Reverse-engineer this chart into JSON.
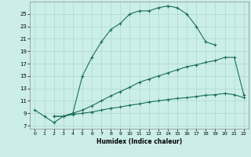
{
  "xlabel": "Humidex (Indice chaleur)",
  "background_color": "#cceee8",
  "grid_color": "#aad8d0",
  "line_color": "#1a6e60",
  "xlim": [
    -0.5,
    22.5
  ],
  "ylim": [
    6.5,
    27.0
  ],
  "xticks": [
    0,
    1,
    2,
    3,
    4,
    5,
    6,
    7,
    8,
    9,
    10,
    11,
    12,
    13,
    14,
    15,
    16,
    17,
    18,
    19,
    20,
    21,
    22
  ],
  "yticks": [
    7,
    9,
    11,
    13,
    15,
    17,
    19,
    21,
    23,
    25
  ],
  "curve1_x": [
    0,
    1,
    2,
    3,
    4,
    5,
    6,
    7,
    8,
    9,
    10,
    11,
    12,
    13,
    14,
    15,
    16,
    17,
    18,
    19
  ],
  "curve1_y": [
    9.5,
    8.5,
    7.5,
    8.5,
    9.0,
    15.0,
    18.0,
    20.5,
    22.5,
    23.5,
    25.0,
    25.5,
    25.5,
    26.0,
    26.3,
    26.0,
    25.0,
    23.0,
    20.5,
    20.0
  ],
  "curve2_x": [
    2,
    3,
    4,
    5,
    6,
    7,
    8,
    9,
    10,
    11,
    12,
    13,
    14,
    15,
    16,
    17,
    18,
    19,
    20,
    21,
    22
  ],
  "curve2_y": [
    8.5,
    8.5,
    9.0,
    9.5,
    10.2,
    11.0,
    11.8,
    12.5,
    13.2,
    14.0,
    14.5,
    15.0,
    15.5,
    16.0,
    16.5,
    16.8,
    17.2,
    17.5,
    18.0,
    18.0,
    12.0
  ],
  "curve3_x": [
    2,
    3,
    4,
    5,
    6,
    7,
    8,
    9,
    10,
    11,
    12,
    13,
    14,
    15,
    16,
    17,
    18,
    19,
    20,
    21,
    22
  ],
  "curve3_y": [
    8.5,
    8.5,
    8.8,
    9.0,
    9.2,
    9.5,
    9.8,
    10.0,
    10.3,
    10.5,
    10.8,
    11.0,
    11.2,
    11.4,
    11.5,
    11.7,
    11.9,
    12.0,
    12.2,
    12.0,
    11.5
  ]
}
